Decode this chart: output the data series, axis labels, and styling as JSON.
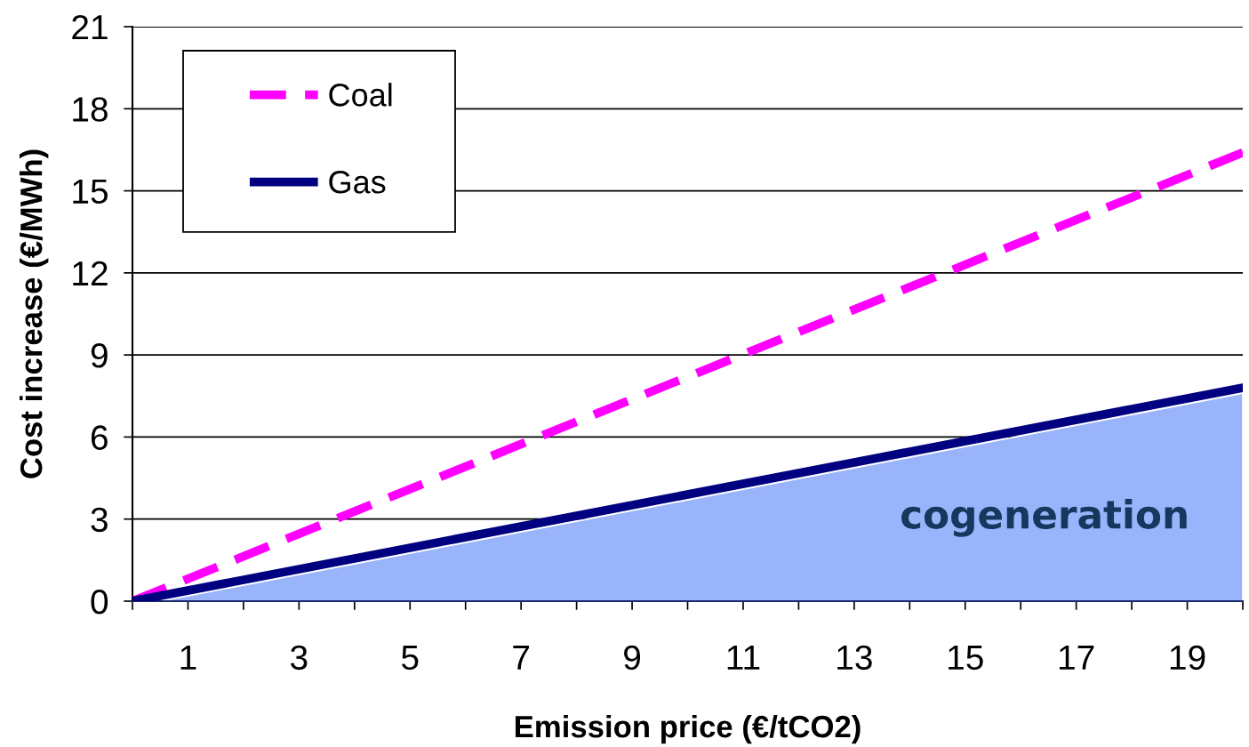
{
  "chart_data": {
    "type": "line",
    "xlabel": "Emission price (€/tCO2)",
    "ylabel": "Cost increase (€/MWh)",
    "xlim": [
      0,
      20
    ],
    "ylim": [
      0,
      21
    ],
    "xticks": [
      {
        "value": 0,
        "label": null
      },
      1,
      {
        "value": 2,
        "label": null
      },
      3,
      {
        "value": 4,
        "label": null
      },
      5,
      {
        "value": 6,
        "label": null
      },
      7,
      {
        "value": 8,
        "label": null
      },
      9,
      {
        "value": 10,
        "label": null
      },
      11,
      {
        "value": 12,
        "label": null
      },
      13,
      {
        "value": 14,
        "label": null
      },
      15,
      {
        "value": 16,
        "label": null
      },
      17,
      {
        "value": 18,
        "label": null
      },
      19,
      {
        "value": 20,
        "label": null
      }
    ],
    "yticks": [
      0,
      3,
      6,
      9,
      12,
      15,
      18,
      21
    ],
    "grid": "y",
    "legend": "top left",
    "x": [
      0,
      20
    ],
    "series": [
      {
        "name": "cogeneration",
        "type": "area",
        "color": "#99b4fb",
        "x": [
          0.5,
          20
        ],
        "values": [
          0,
          7.6
        ]
      },
      {
        "name": "Coal",
        "color": "#ff00ff",
        "line_style": "dashed",
        "values": [
          0,
          16.4
        ]
      },
      {
        "name": "Gas",
        "color": "#000080",
        "line_style": "solid",
        "values": [
          0,
          7.8
        ]
      }
    ]
  }
}
